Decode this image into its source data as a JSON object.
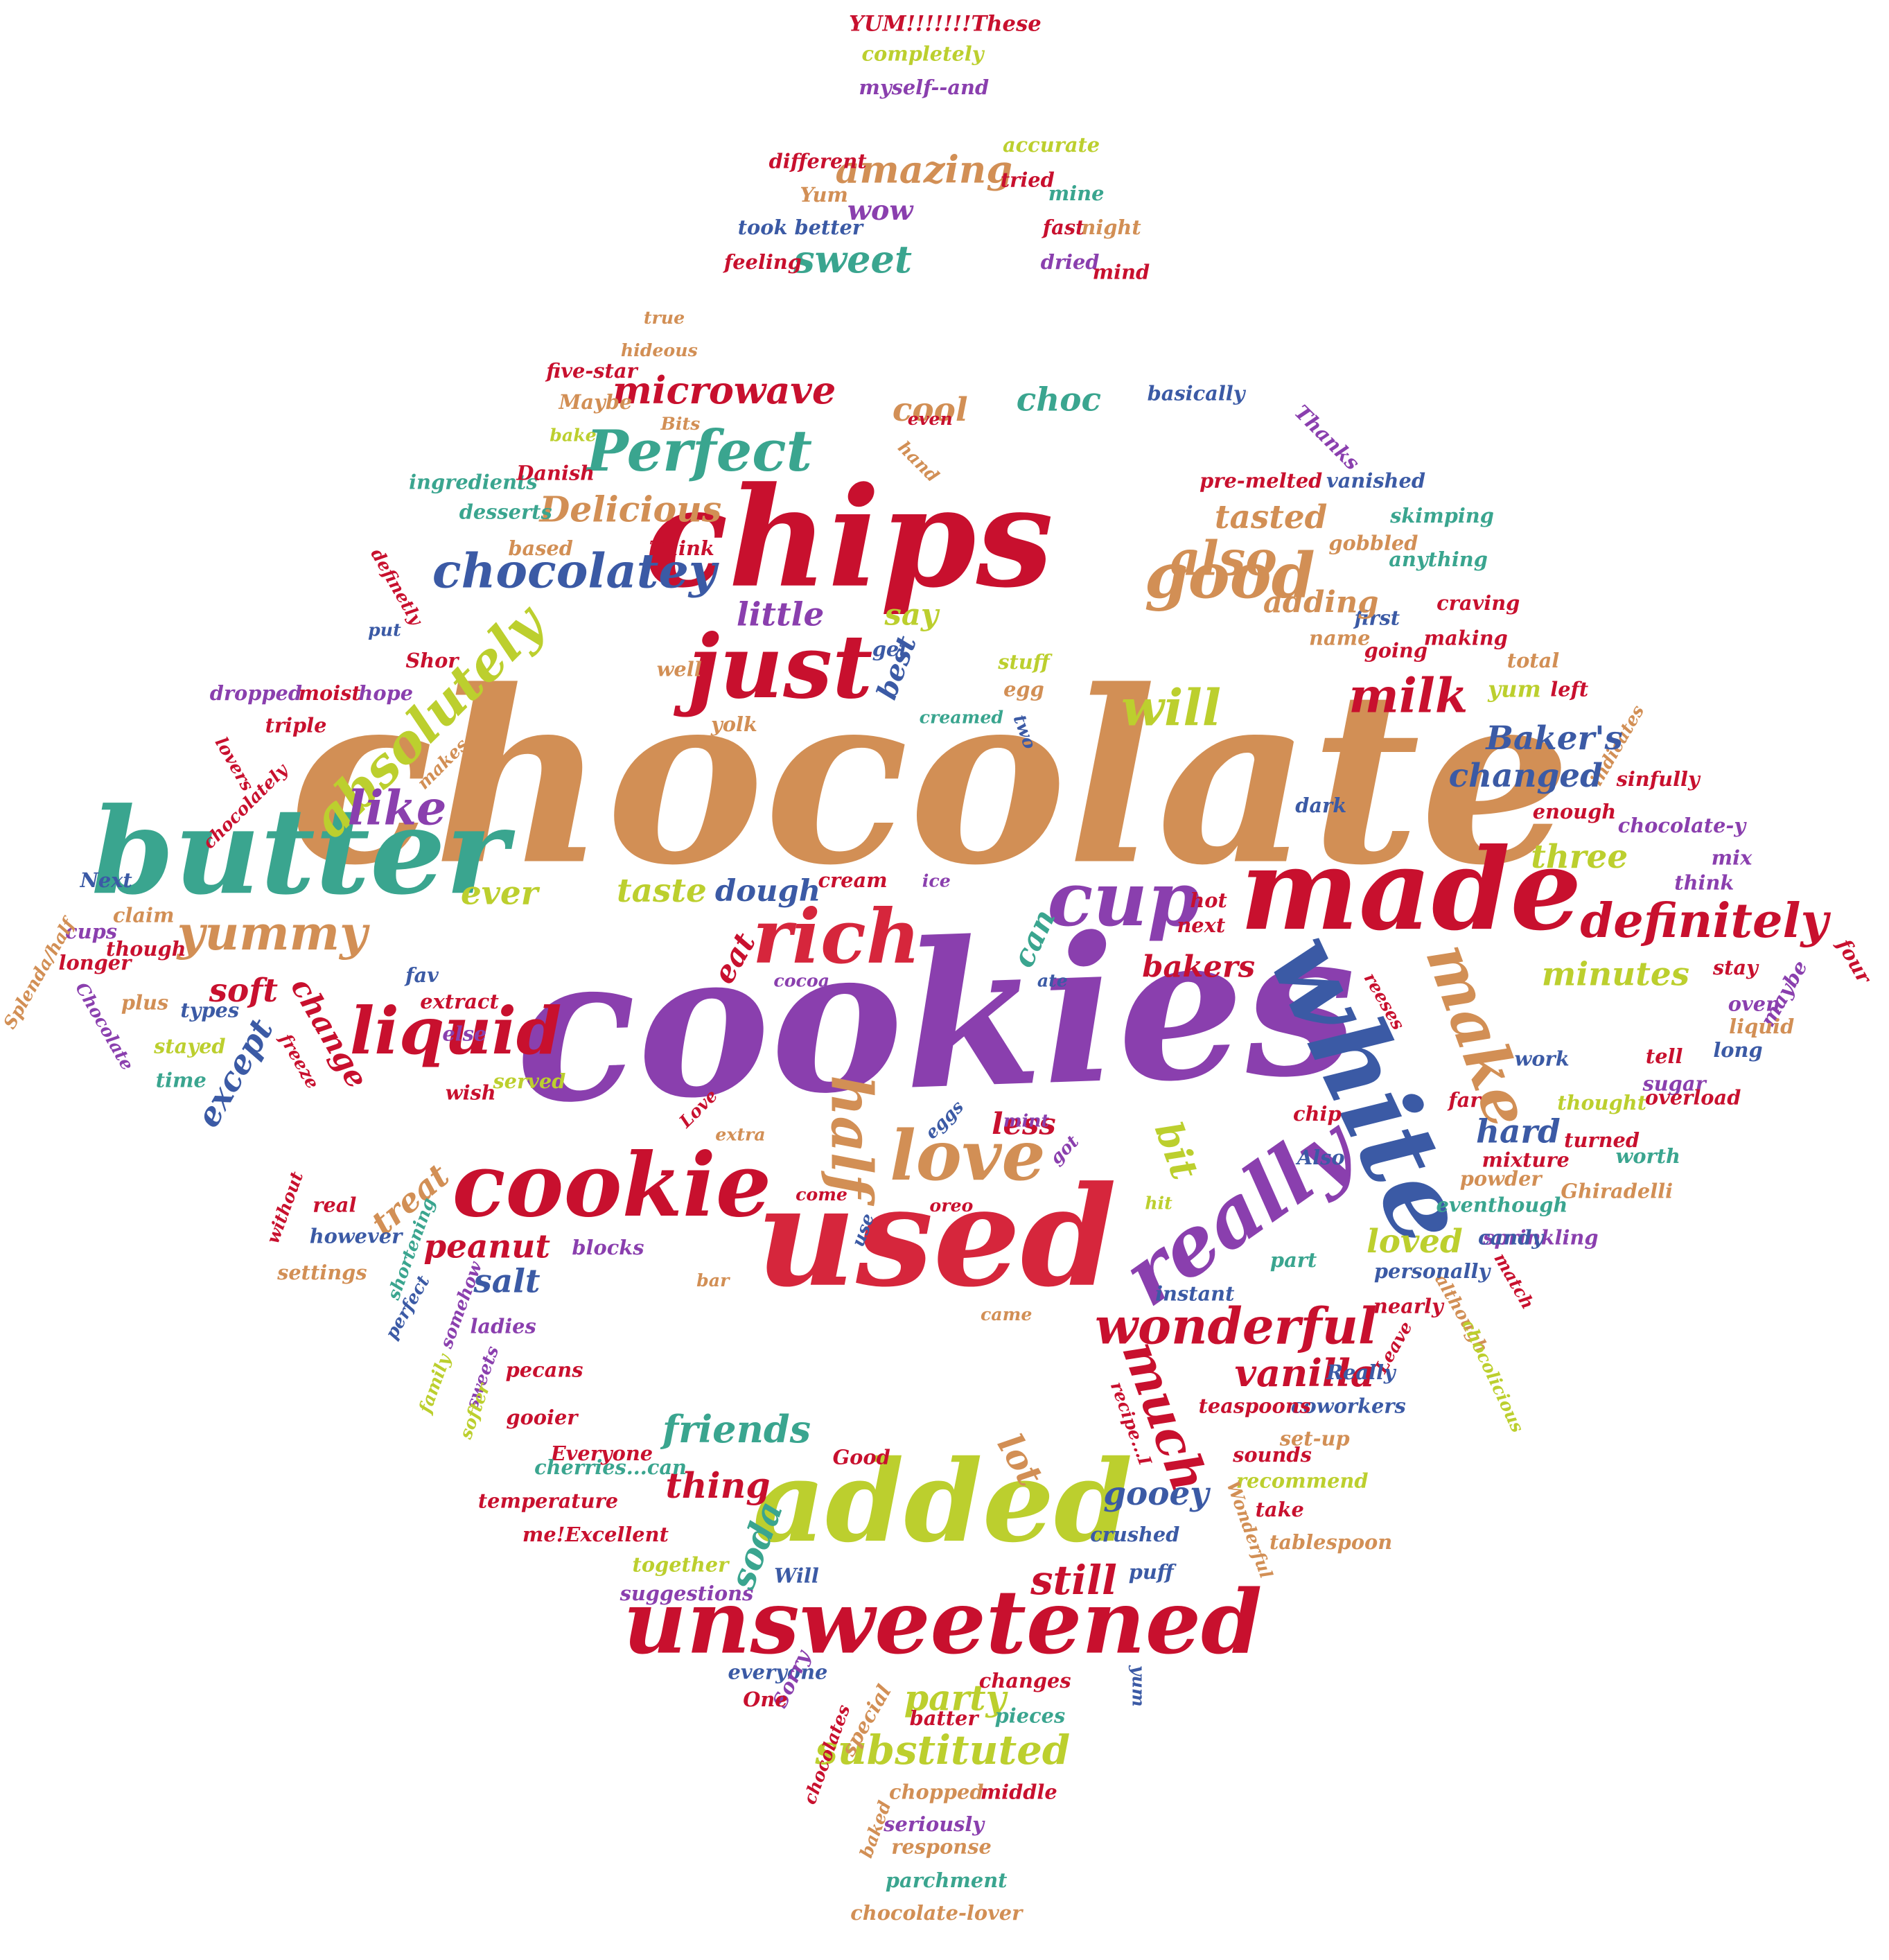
{
  "palette": {
    "red": "#c8102e",
    "crimson": "#d6263c",
    "tan": "#d28f55",
    "purple": "#8a3fae",
    "blue": "#3b5aa5",
    "teal": "#3aa58f",
    "lime": "#bccf2e"
  },
  "words": [
    {
      "text": "chocolate",
      "color": "tan"
    },
    {
      "text": "cookies",
      "color": "purple"
    },
    {
      "text": "chips",
      "color": "red"
    },
    {
      "text": "made",
      "color": "red"
    },
    {
      "text": "used",
      "color": "crimson"
    },
    {
      "text": "butter",
      "color": "teal"
    },
    {
      "text": "white",
      "color": "blue"
    },
    {
      "text": "added",
      "color": "lime"
    },
    {
      "text": "unsweetened",
      "color": "red"
    },
    {
      "text": "cookie",
      "color": "red"
    },
    {
      "text": "really",
      "color": "purple"
    },
    {
      "text": "just",
      "color": "red"
    },
    {
      "text": "rich",
      "color": "crimson"
    },
    {
      "text": "cup",
      "color": "purple"
    },
    {
      "text": "love",
      "color": "tan"
    },
    {
      "text": "make",
      "color": "tan"
    },
    {
      "text": "liquid",
      "color": "red"
    },
    {
      "text": "good",
      "color": "tan"
    },
    {
      "text": "Perfect",
      "color": "teal"
    },
    {
      "text": "absolutely",
      "color": "lime"
    },
    {
      "text": "chocolatey",
      "color": "blue"
    },
    {
      "text": "definitely",
      "color": "red"
    },
    {
      "text": "wonderful",
      "color": "red"
    },
    {
      "text": "much",
      "color": "red"
    },
    {
      "text": "half",
      "color": "tan"
    },
    {
      "text": "also",
      "color": "tan"
    },
    {
      "text": "will",
      "color": "lime"
    },
    {
      "text": "yummy",
      "color": "tan"
    },
    {
      "text": "like",
      "color": "purple"
    },
    {
      "text": "milk",
      "color": "red"
    },
    {
      "text": "microwave",
      "color": "red"
    },
    {
      "text": "Delicious",
      "color": "tan"
    },
    {
      "text": "amazing",
      "color": "tan"
    },
    {
      "text": "sweet",
      "color": "teal"
    },
    {
      "text": "wow",
      "color": "purple"
    },
    {
      "text": "Yum",
      "color": "tan"
    },
    {
      "text": "different",
      "color": "red"
    },
    {
      "text": "accurate",
      "color": "lime"
    },
    {
      "text": "tried",
      "color": "red"
    },
    {
      "text": "mine",
      "color": "teal"
    },
    {
      "text": "took better",
      "color": "blue"
    },
    {
      "text": "fast",
      "color": "red"
    },
    {
      "text": "night",
      "color": "tan"
    },
    {
      "text": "feeling",
      "color": "red"
    },
    {
      "text": "dried",
      "color": "purple"
    },
    {
      "text": "mind",
      "color": "red"
    },
    {
      "text": "YUM!!!!!!!These",
      "color": "red"
    },
    {
      "text": "completely",
      "color": "lime"
    },
    {
      "text": "myself--and",
      "color": "purple"
    },
    {
      "text": "true",
      "color": "tan"
    },
    {
      "text": "hideous",
      "color": "tan"
    },
    {
      "text": "five-star",
      "color": "red"
    },
    {
      "text": "Maybe",
      "color": "tan"
    },
    {
      "text": "bake",
      "color": "lime"
    },
    {
      "text": "Bits",
      "color": "tan"
    },
    {
      "text": "ingredients",
      "color": "teal"
    },
    {
      "text": "Danish",
      "color": "red"
    },
    {
      "text": "desserts",
      "color": "teal"
    },
    {
      "text": "based",
      "color": "tan"
    },
    {
      "text": "Think",
      "color": "red"
    },
    {
      "text": "definetly",
      "color": "red"
    },
    {
      "text": "put",
      "color": "blue"
    },
    {
      "text": "Shor",
      "color": "red"
    },
    {
      "text": "dropped",
      "color": "purple"
    },
    {
      "text": "moist",
      "color": "red"
    },
    {
      "text": "hope",
      "color": "purple"
    },
    {
      "text": "triple",
      "color": "red"
    },
    {
      "text": "lovers",
      "color": "red"
    },
    {
      "text": "chocolately",
      "color": "red"
    },
    {
      "text": "makes",
      "color": "tan"
    },
    {
      "text": "claim",
      "color": "tan"
    },
    {
      "text": "Next",
      "color": "blue"
    },
    {
      "text": "cups",
      "color": "purple"
    },
    {
      "text": "though",
      "color": "red"
    },
    {
      "text": "longer",
      "color": "red"
    },
    {
      "text": "Splenda/half",
      "color": "tan"
    },
    {
      "text": "Chocolate",
      "color": "purple"
    },
    {
      "text": "plus",
      "color": "tan"
    },
    {
      "text": "types",
      "color": "blue"
    },
    {
      "text": "stayed",
      "color": "lime"
    },
    {
      "text": "time",
      "color": "teal"
    },
    {
      "text": "fav",
      "color": "blue"
    },
    {
      "text": "extract",
      "color": "red"
    },
    {
      "text": "else",
      "color": "purple"
    },
    {
      "text": "freeze",
      "color": "red"
    },
    {
      "text": "wish",
      "color": "red"
    },
    {
      "text": "served",
      "color": "lime"
    },
    {
      "text": "basically",
      "color": "blue"
    },
    {
      "text": "Thanks",
      "color": "purple"
    },
    {
      "text": "pre-melted",
      "color": "red"
    },
    {
      "text": "vanished",
      "color": "blue"
    },
    {
      "text": "skimping",
      "color": "teal"
    },
    {
      "text": "gobbled",
      "color": "tan"
    },
    {
      "text": "anything",
      "color": "teal"
    },
    {
      "text": "craving",
      "color": "red"
    },
    {
      "text": "first",
      "color": "blue"
    },
    {
      "text": "making",
      "color": "red"
    },
    {
      "text": "name",
      "color": "tan"
    },
    {
      "text": "going",
      "color": "red"
    },
    {
      "text": "total",
      "color": "tan"
    },
    {
      "text": "left",
      "color": "red"
    },
    {
      "text": "indicates",
      "color": "tan"
    },
    {
      "text": "sinfully",
      "color": "red"
    },
    {
      "text": "enough",
      "color": "red"
    },
    {
      "text": "chocolate-y",
      "color": "purple"
    },
    {
      "text": "mix",
      "color": "purple"
    },
    {
      "text": "think",
      "color": "purple"
    },
    {
      "text": "four",
      "color": "red"
    },
    {
      "text": "maybe",
      "color": "purple"
    },
    {
      "text": "stay",
      "color": "red"
    },
    {
      "text": "liquid",
      "color": "tan"
    },
    {
      "text": "oven",
      "color": "purple"
    },
    {
      "text": "long",
      "color": "blue"
    },
    {
      "text": "tell",
      "color": "red"
    },
    {
      "text": "sugar",
      "color": "purple"
    },
    {
      "text": "overload",
      "color": "red"
    },
    {
      "text": "worth",
      "color": "teal"
    },
    {
      "text": "Ghiradelli",
      "color": "tan"
    },
    {
      "text": "sprinkling",
      "color": "purple"
    },
    {
      "text": "match",
      "color": "red"
    },
    {
      "text": "although",
      "color": "tan"
    },
    {
      "text": "chocolicious",
      "color": "lime"
    },
    {
      "text": "Baker's",
      "color": "blue"
    },
    {
      "text": "changed",
      "color": "blue"
    },
    {
      "text": "three",
      "color": "lime"
    },
    {
      "text": "minutes",
      "color": "lime"
    },
    {
      "text": "hard",
      "color": "blue"
    },
    {
      "text": "loved",
      "color": "lime"
    },
    {
      "text": "vanilla",
      "color": "red"
    },
    {
      "text": "friends",
      "color": "teal"
    },
    {
      "text": "thing",
      "color": "red"
    },
    {
      "text": "soda",
      "color": "teal"
    },
    {
      "text": "lot",
      "color": "tan"
    },
    {
      "text": "gooey",
      "color": "blue"
    },
    {
      "text": "still",
      "color": "red"
    },
    {
      "text": "party",
      "color": "lime"
    },
    {
      "text": "substituted",
      "color": "lime"
    },
    {
      "text": "salt",
      "color": "blue"
    },
    {
      "text": "peanut",
      "color": "red"
    },
    {
      "text": "treat",
      "color": "tan"
    },
    {
      "text": "less",
      "color": "red"
    },
    {
      "text": "bit",
      "color": "lime"
    },
    {
      "text": "soft",
      "color": "red"
    },
    {
      "text": "change",
      "color": "red"
    },
    {
      "text": "except",
      "color": "blue"
    },
    {
      "text": "ever",
      "color": "lime"
    },
    {
      "text": "taste",
      "color": "lime"
    },
    {
      "text": "dough",
      "color": "blue"
    },
    {
      "text": "eat",
      "color": "red"
    },
    {
      "text": "can",
      "color": "teal"
    },
    {
      "text": "bakers",
      "color": "red"
    },
    {
      "text": "tasted",
      "color": "tan"
    },
    {
      "text": "adding",
      "color": "tan"
    },
    {
      "text": "say",
      "color": "lime"
    },
    {
      "text": "yum",
      "color": "lime"
    },
    {
      "text": "little",
      "color": "purple"
    },
    {
      "text": "best",
      "color": "blue"
    },
    {
      "text": "cool",
      "color": "tan"
    },
    {
      "text": "choc",
      "color": "teal"
    },
    {
      "text": "even",
      "color": "red"
    },
    {
      "text": "hand",
      "color": "tan"
    },
    {
      "text": "stuff",
      "color": "lime"
    },
    {
      "text": "egg",
      "color": "tan"
    },
    {
      "text": "well",
      "color": "tan"
    },
    {
      "text": "get",
      "color": "blue"
    },
    {
      "text": "yolk",
      "color": "tan"
    },
    {
      "text": "creamed",
      "color": "teal"
    },
    {
      "text": "two",
      "color": "blue"
    },
    {
      "text": "dark",
      "color": "blue"
    },
    {
      "text": "cream",
      "color": "red"
    },
    {
      "text": "ice",
      "color": "purple"
    },
    {
      "text": "hot",
      "color": "red"
    },
    {
      "text": "next",
      "color": "red"
    },
    {
      "text": "cocoa",
      "color": "purple"
    },
    {
      "text": "ate",
      "color": "blue"
    },
    {
      "text": "reeses",
      "color": "red"
    },
    {
      "text": "work",
      "color": "blue"
    },
    {
      "text": "far",
      "color": "red"
    },
    {
      "text": "chip",
      "color": "red"
    },
    {
      "text": "thought",
      "color": "lime"
    },
    {
      "text": "turned",
      "color": "red"
    },
    {
      "text": "Also",
      "color": "blue"
    },
    {
      "text": "mixture",
      "color": "red"
    },
    {
      "text": "powder",
      "color": "tan"
    },
    {
      "text": "eventhough",
      "color": "teal"
    },
    {
      "text": "candy",
      "color": "blue"
    },
    {
      "text": "personally",
      "color": "blue"
    },
    {
      "text": "nearly",
      "color": "red"
    },
    {
      "text": "Leave",
      "color": "red"
    },
    {
      "text": "Really",
      "color": "blue"
    },
    {
      "text": "coworkers",
      "color": "blue"
    },
    {
      "text": "teaspoons",
      "color": "red"
    },
    {
      "text": "set-up",
      "color": "tan"
    },
    {
      "text": "sounds",
      "color": "red"
    },
    {
      "text": "recommend",
      "color": "lime"
    },
    {
      "text": "Wonderful",
      "color": "tan"
    },
    {
      "text": "take",
      "color": "red"
    },
    {
      "text": "tablespoon",
      "color": "tan"
    },
    {
      "text": "recipe...I",
      "color": "red"
    },
    {
      "text": "Love",
      "color": "red"
    },
    {
      "text": "extra",
      "color": "tan"
    },
    {
      "text": "eggs",
      "color": "blue"
    },
    {
      "text": "mint",
      "color": "purple"
    },
    {
      "text": "got",
      "color": "purple"
    },
    {
      "text": "come",
      "color": "red"
    },
    {
      "text": "oreo",
      "color": "red"
    },
    {
      "text": "hit",
      "color": "lime"
    },
    {
      "text": "use",
      "color": "blue"
    },
    {
      "text": "instant",
      "color": "blue"
    },
    {
      "text": "part",
      "color": "teal"
    },
    {
      "text": "came",
      "color": "tan"
    },
    {
      "text": "bar",
      "color": "tan"
    },
    {
      "text": "blocks",
      "color": "purple"
    },
    {
      "text": "without",
      "color": "red"
    },
    {
      "text": "real",
      "color": "red"
    },
    {
      "text": "however",
      "color": "blue"
    },
    {
      "text": "settings",
      "color": "tan"
    },
    {
      "text": "shortening",
      "color": "teal"
    },
    {
      "text": "perfect",
      "color": "blue"
    },
    {
      "text": "somehow",
      "color": "purple"
    },
    {
      "text": "ladies",
      "color": "purple"
    },
    {
      "text": "family",
      "color": "lime"
    },
    {
      "text": "sweets",
      "color": "purple"
    },
    {
      "text": "softer",
      "color": "lime"
    },
    {
      "text": "pecans",
      "color": "red"
    },
    {
      "text": "gooier",
      "color": "red"
    },
    {
      "text": "Everyone",
      "color": "red"
    },
    {
      "text": "cherries...can",
      "color": "teal"
    },
    {
      "text": "temperature",
      "color": "red"
    },
    {
      "text": "me!Excellent",
      "color": "red"
    },
    {
      "text": "together",
      "color": "lime"
    },
    {
      "text": "suggestions",
      "color": "purple"
    },
    {
      "text": "Good",
      "color": "red"
    },
    {
      "text": "Will",
      "color": "blue"
    },
    {
      "text": "crushed",
      "color": "blue"
    },
    {
      "text": "puff",
      "color": "blue"
    },
    {
      "text": "everyone",
      "color": "blue"
    },
    {
      "text": "Sorry",
      "color": "purple"
    },
    {
      "text": "One",
      "color": "red"
    },
    {
      "text": "special",
      "color": "tan"
    },
    {
      "text": "chocolates",
      "color": "red"
    },
    {
      "text": "changes",
      "color": "red"
    },
    {
      "text": "yum",
      "color": "blue"
    },
    {
      "text": "batter",
      "color": "red"
    },
    {
      "text": "pieces",
      "color": "teal"
    },
    {
      "text": "chopped",
      "color": "tan"
    },
    {
      "text": "middle",
      "color": "red"
    },
    {
      "text": "baked",
      "color": "tan"
    },
    {
      "text": "seriously",
      "color": "purple"
    },
    {
      "text": "response",
      "color": "tan"
    },
    {
      "text": "parchment",
      "color": "teal"
    },
    {
      "text": "chocolate-lover",
      "color": "tan"
    }
  ]
}
